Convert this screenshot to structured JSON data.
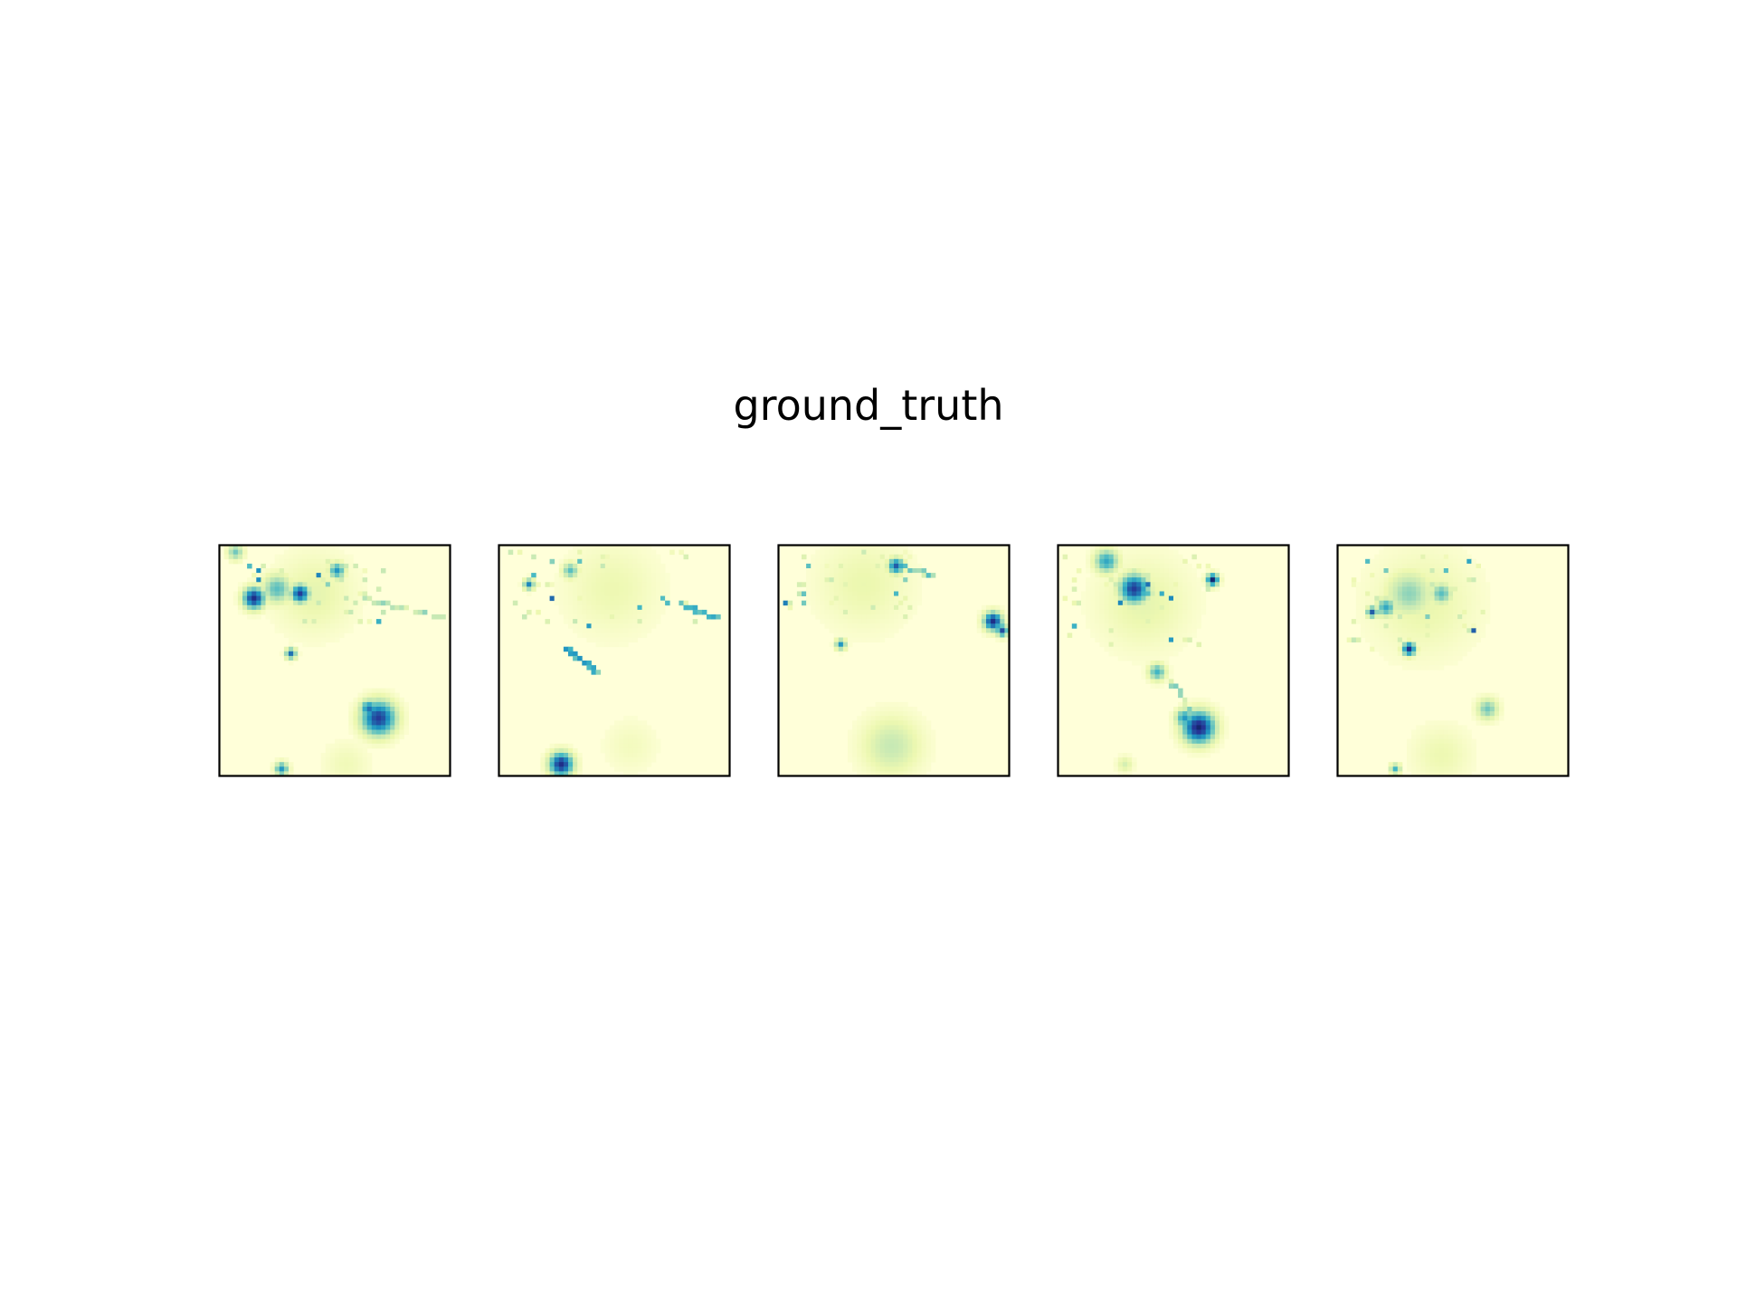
{
  "chart_data": {
    "type": "heatmap",
    "title": "ground_truth",
    "colormap": "YlGnBu",
    "colors": {
      "low": "#ffffd9",
      "mid": "#7fcdbb",
      "high": "#081d58",
      "frame": "#000000"
    },
    "grid_size": [
      50,
      50
    ],
    "axes_ticks": "none",
    "panels": [
      {
        "blobs": [
          {
            "x": 34,
            "y": 37,
            "r": 2.6,
            "v": 0.85
          },
          {
            "x": 32,
            "y": 35,
            "r": 1.4,
            "v": 0.7
          },
          {
            "x": 7,
            "y": 11,
            "r": 1.6,
            "v": 0.9
          },
          {
            "x": 17,
            "y": 10,
            "r": 1.4,
            "v": 0.85
          },
          {
            "x": 12,
            "y": 9,
            "r": 2.2,
            "v": 0.45
          },
          {
            "x": 25,
            "y": 5,
            "r": 1.2,
            "v": 0.6
          },
          {
            "x": 3,
            "y": 1,
            "r": 1.2,
            "v": 0.4
          },
          {
            "x": 15,
            "y": 23,
            "r": 0.8,
            "v": 0.7
          },
          {
            "x": 13,
            "y": 48,
            "r": 1.0,
            "v": 0.6
          },
          {
            "x": 20,
            "y": 10,
            "r": 6,
            "v": 0.15
          },
          {
            "x": 27,
            "y": 47,
            "r": 3.5,
            "v": 0.1
          }
        ],
        "streaks": [
          {
            "x1": 30,
            "y1": 11,
            "x2": 48,
            "y2": 15,
            "v": 0.25
          }
        ],
        "speckle": {
          "cx": 20,
          "cy": 10,
          "rx": 16,
          "ry": 7,
          "n": 40
        }
      },
      {
        "blobs": [
          {
            "x": 13,
            "y": 47,
            "r": 1.8,
            "v": 0.9
          },
          {
            "x": 15,
            "y": 5,
            "r": 1.2,
            "v": 0.45
          },
          {
            "x": 6,
            "y": 8,
            "r": 0.8,
            "v": 0.65
          },
          {
            "x": 24,
            "y": 9,
            "r": 7,
            "v": 0.12
          },
          {
            "x": 28,
            "y": 43,
            "r": 4,
            "v": 0.08
          }
        ],
        "streaks": [
          {
            "x1": 35,
            "y1": 11,
            "x2": 49,
            "y2": 16,
            "v": 0.4
          },
          {
            "x1": 14,
            "y1": 22,
            "x2": 21,
            "y2": 27,
            "v": 0.45
          }
        ],
        "speckle": {
          "cx": 22,
          "cy": 9,
          "rx": 20,
          "ry": 8,
          "n": 35
        }
      },
      {
        "blobs": [
          {
            "x": 25,
            "y": 4,
            "r": 1.2,
            "v": 0.75
          },
          {
            "x": 46,
            "y": 16,
            "r": 1.4,
            "v": 0.9
          },
          {
            "x": 48,
            "y": 18,
            "r": 0.9,
            "v": 0.8
          },
          {
            "x": 13,
            "y": 21,
            "r": 0.8,
            "v": 0.6
          },
          {
            "x": 24,
            "y": 43,
            "r": 4.5,
            "v": 0.25
          },
          {
            "x": 18,
            "y": 8,
            "r": 7,
            "v": 0.13
          }
        ],
        "streaks": [
          {
            "x1": 26,
            "y1": 4,
            "x2": 33,
            "y2": 6,
            "v": 0.35
          }
        ],
        "speckle": {
          "cx": 16,
          "cy": 8,
          "rx": 15,
          "ry": 8,
          "n": 38
        }
      },
      {
        "blobs": [
          {
            "x": 16,
            "y": 9,
            "r": 2.2,
            "v": 0.85
          },
          {
            "x": 10,
            "y": 3,
            "r": 1.8,
            "v": 0.55
          },
          {
            "x": 33,
            "y": 7,
            "r": 0.9,
            "v": 0.95
          },
          {
            "x": 30,
            "y": 39,
            "r": 2.4,
            "v": 0.95
          },
          {
            "x": 27,
            "y": 37,
            "r": 1.4,
            "v": 0.6
          },
          {
            "x": 21,
            "y": 27,
            "r": 1.3,
            "v": 0.5
          },
          {
            "x": 14,
            "y": 47,
            "r": 1.2,
            "v": 0.2
          },
          {
            "x": 18,
            "y": 12,
            "r": 7,
            "v": 0.15
          }
        ],
        "streaks": [
          {
            "x1": 24,
            "y1": 29,
            "x2": 30,
            "y2": 38,
            "v": 0.3
          }
        ],
        "speckle": {
          "cx": 18,
          "cy": 12,
          "rx": 18,
          "ry": 10,
          "n": 45
        }
      },
      {
        "blobs": [
          {
            "x": 15,
            "y": 10,
            "r": 3.5,
            "v": 0.35
          },
          {
            "x": 10,
            "y": 13,
            "r": 1.4,
            "v": 0.55
          },
          {
            "x": 22,
            "y": 10,
            "r": 1.6,
            "v": 0.45
          },
          {
            "x": 7,
            "y": 14,
            "r": 0.8,
            "v": 0.75
          },
          {
            "x": 15,
            "y": 22,
            "r": 1.0,
            "v": 0.9
          },
          {
            "x": 32,
            "y": 35,
            "r": 1.6,
            "v": 0.4
          },
          {
            "x": 22,
            "y": 45,
            "r": 4.5,
            "v": 0.12
          },
          {
            "x": 12,
            "y": 48,
            "r": 0.8,
            "v": 0.5
          },
          {
            "x": 18,
            "y": 12,
            "r": 8,
            "v": 0.14
          }
        ],
        "streaks": [],
        "speckle": {
          "cx": 17,
          "cy": 12,
          "rx": 16,
          "ry": 10,
          "n": 42
        }
      }
    ]
  }
}
